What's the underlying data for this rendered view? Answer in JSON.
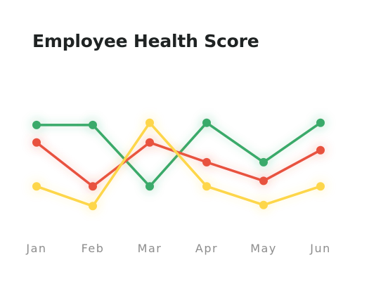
{
  "chart_data": {
    "type": "line",
    "title": "Employee Health Score",
    "xlabel": "",
    "ylabel": "",
    "categories": [
      "Jan",
      "Feb",
      "Mar",
      "Apr",
      "May",
      "Jun"
    ],
    "ylim": [
      0,
      100
    ],
    "grid": false,
    "legend": "none",
    "series": [
      {
        "color": "#3aaa6a",
        "values": [
          86,
          86,
          30,
          88,
          52,
          88
        ]
      },
      {
        "color": "#e8523f",
        "values": [
          70,
          30,
          70,
          52,
          35,
          63
        ]
      },
      {
        "color": "#fdd64a",
        "values": [
          30,
          12,
          88,
          30,
          13,
          30
        ]
      }
    ]
  }
}
